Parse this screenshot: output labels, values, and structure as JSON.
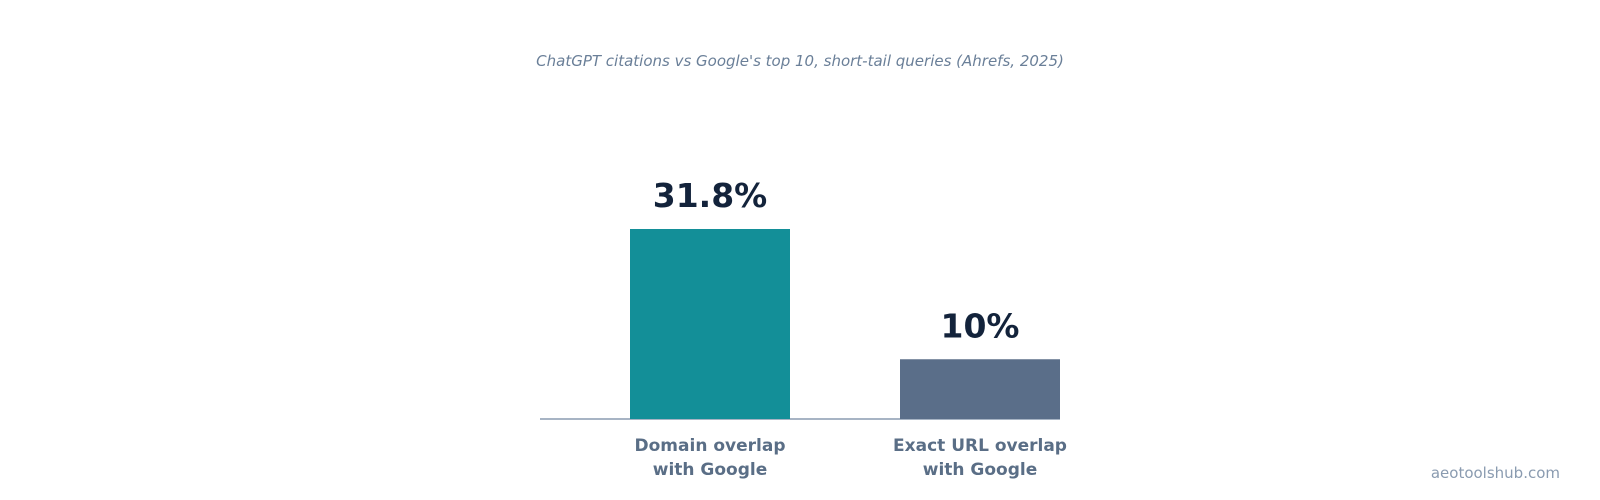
{
  "chart_data": {
    "type": "bar",
    "title": "ChatGPT citations vs Google's top 10, short-tail queries (Ahrefs, 2025)",
    "categories": [
      [
        "Domain overlap",
        "with Google"
      ],
      [
        "Exact URL overlap",
        "with Google"
      ]
    ],
    "values": [
      31.8,
      10
    ],
    "value_labels": [
      "31.8%",
      "10%"
    ],
    "bar_colors": [
      "#138f98",
      "#5a6e89"
    ],
    "ylim": [
      0,
      31.8
    ],
    "xlabel": "",
    "ylabel": "",
    "grid": false,
    "legend": "none"
  },
  "colors": {
    "axis": "#8a9bb0",
    "value_text": "#13233b",
    "category_text": "#5a6e86"
  },
  "watermark": "aeotoolshub.com"
}
